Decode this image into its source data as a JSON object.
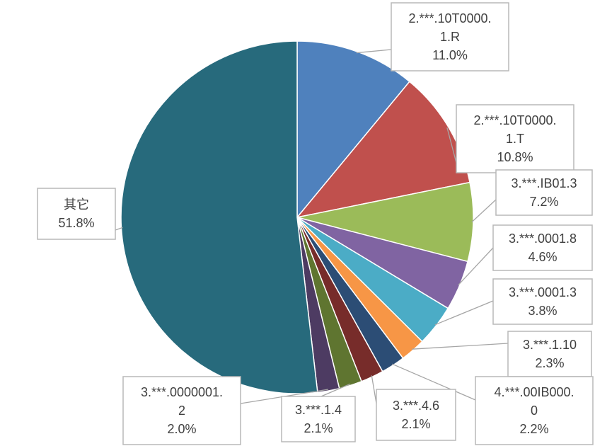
{
  "chart_data": {
    "type": "pie",
    "slices": [
      {
        "label": "2.***.10T0000.1.R",
        "lines": [
          "2.***.10T0000.",
          "1.R"
        ],
        "value": 11.0,
        "display": "11.0%",
        "color": "#4f81bd"
      },
      {
        "label": "2.***.10T0000.1.T",
        "lines": [
          "2.***.10T0000.",
          "1.T"
        ],
        "value": 10.8,
        "display": "10.8%",
        "color": "#c0504d"
      },
      {
        "label": "3.***.IB01.3",
        "lines": [
          "3.***.IB01.3"
        ],
        "value": 7.2,
        "display": "7.2%",
        "color": "#9bbb59"
      },
      {
        "label": "3.***.0001.8",
        "lines": [
          "3.***.0001.8"
        ],
        "value": 4.6,
        "display": "4.6%",
        "color": "#8064a2"
      },
      {
        "label": "3.***.0001.3",
        "lines": [
          "3.***.0001.3"
        ],
        "value": 3.8,
        "display": "3.8%",
        "color": "#4bacc6"
      },
      {
        "label": "3.***.1.10",
        "lines": [
          "3.***.1.10"
        ],
        "value": 2.3,
        "display": "2.3%",
        "color": "#f79646"
      },
      {
        "label": "4.***.00IB000.0",
        "lines": [
          "4.***.00IB000.",
          "0"
        ],
        "value": 2.2,
        "display": "2.2%",
        "color": "#2c4d75"
      },
      {
        "label": "3.***.4.6",
        "lines": [
          "3.***.4.6"
        ],
        "value": 2.1,
        "display": "2.1%",
        "color": "#772c2a"
      },
      {
        "label": "3.***.1.4",
        "lines": [
          "3.***.1.4"
        ],
        "value": 2.1,
        "display": "2.1%",
        "color": "#5f7530"
      },
      {
        "label": "3.***.0000001.2",
        "lines": [
          "3.***.0000001.",
          "2"
        ],
        "value": 2.0,
        "display": "2.0%",
        "color": "#4d3b62"
      },
      {
        "label": "其它",
        "lines": [
          "其它"
        ],
        "value": 51.8,
        "display": "51.8%",
        "color": "#276a7c"
      }
    ],
    "start_angle": "12 o'clock",
    "direction": "clockwise",
    "legend": "none",
    "data_labels": "callouts with leader lines"
  }
}
